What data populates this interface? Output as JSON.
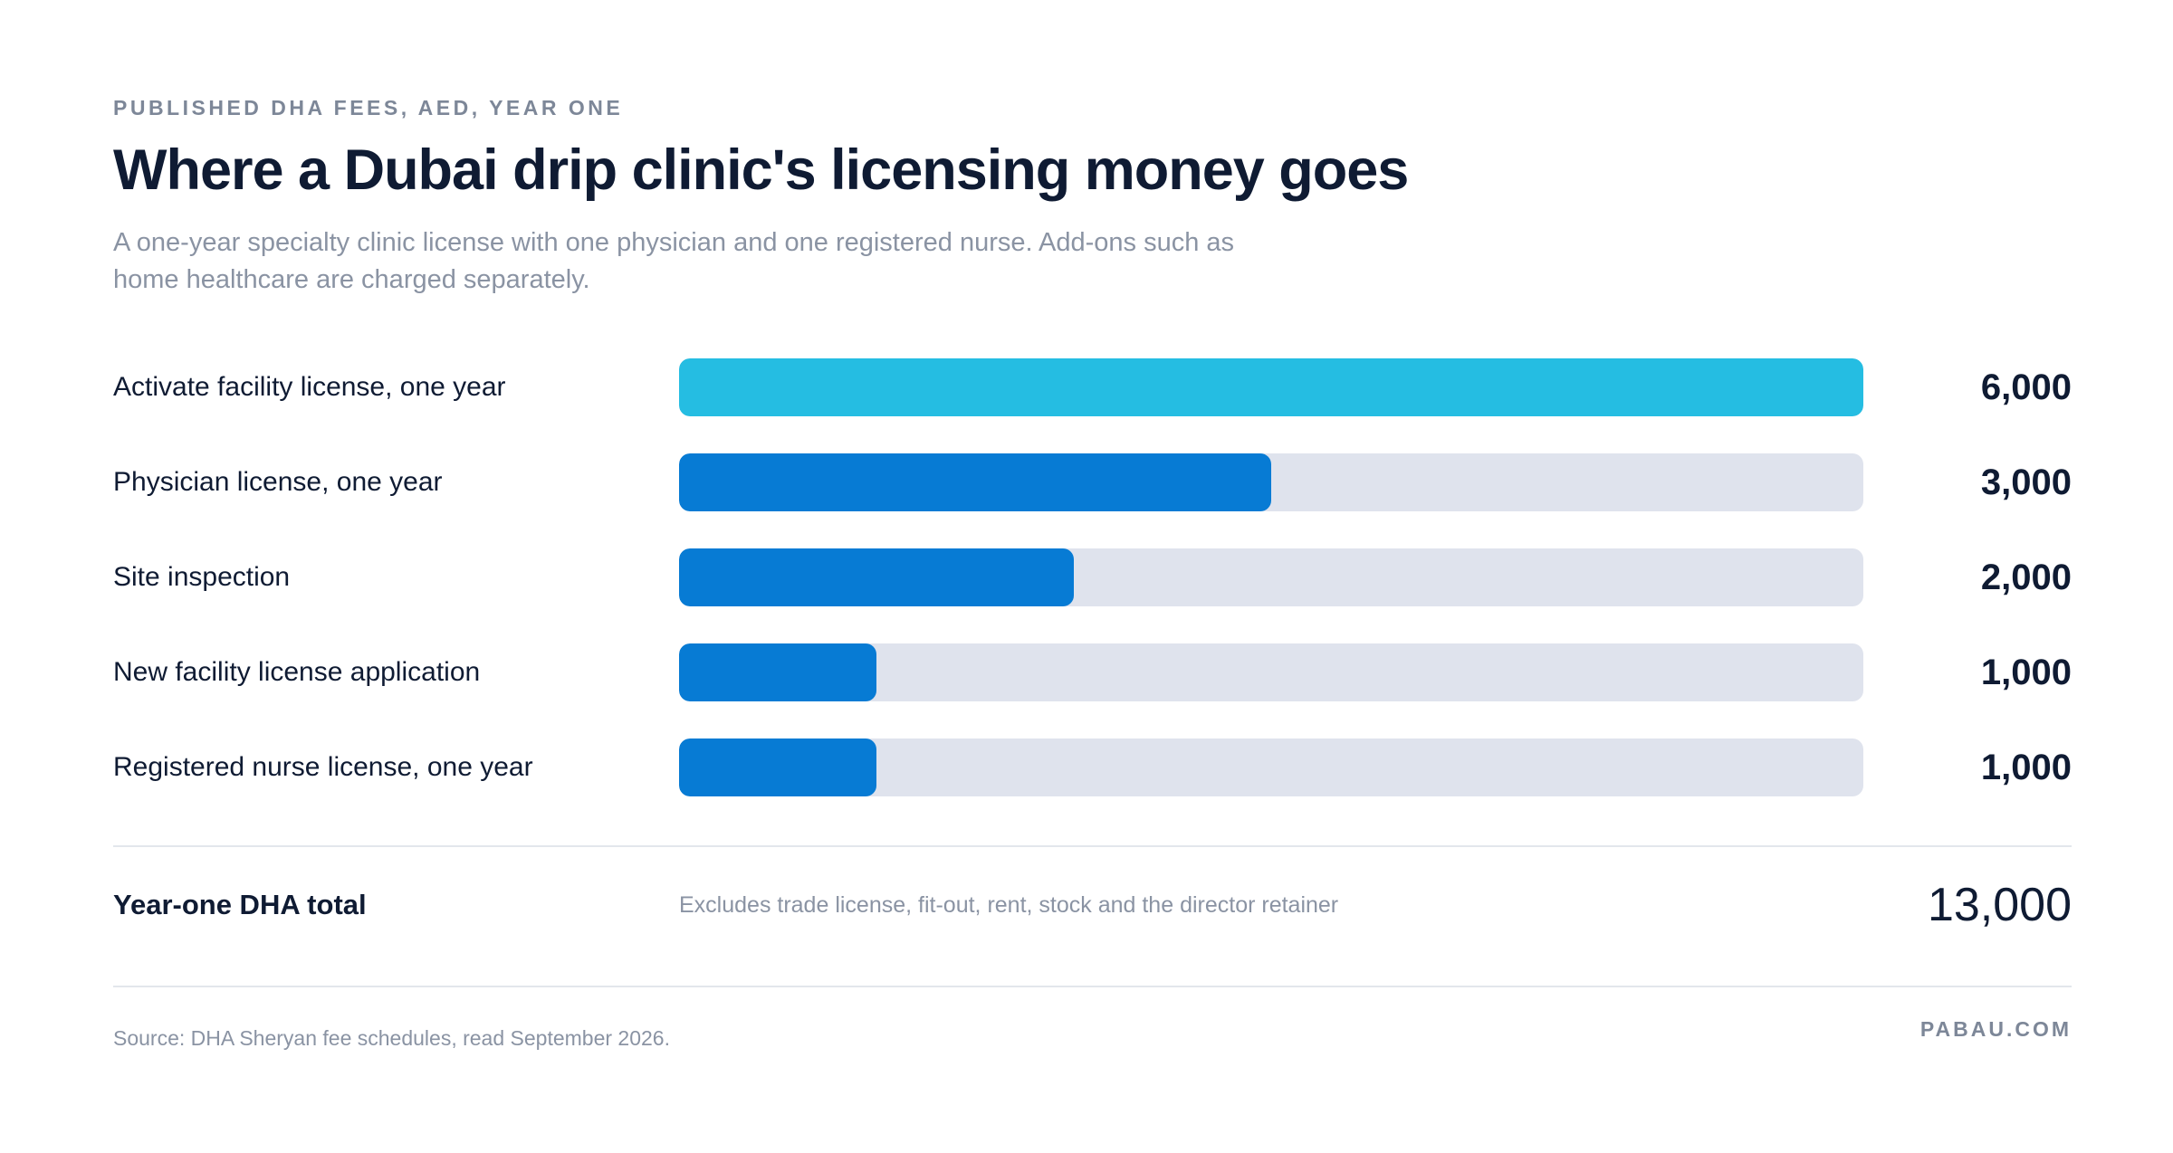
{
  "header": {
    "eyebrow": "PUBLISHED DHA FEES, AED, YEAR ONE",
    "title": "Where a Dubai drip clinic's licensing money goes",
    "subtitle": "A one-year specialty clinic license with one physician and one registered nurse. Add-ons such as home healthcare are charged separately."
  },
  "colors": {
    "highlight_bar": "#25bde2",
    "bar": "#077bd4",
    "track": "#dfe3ed",
    "text_dark": "#0f1b33",
    "text_muted": "#8a93a3"
  },
  "chart_data": {
    "type": "bar",
    "orientation": "horizontal",
    "title": "Where a Dubai drip clinic's licensing money goes",
    "subtitle": "A one-year specialty clinic license with one physician and one registered nurse. Add-ons such as home healthcare are charged separately.",
    "unit": "AED",
    "categories": [
      "Activate facility license, one year",
      "Physician license, one year",
      "Site inspection",
      "New facility license application",
      "Registered nurse license, one year"
    ],
    "values": [
      6000,
      3000,
      2000,
      1000,
      1000
    ],
    "value_labels": [
      "6,000",
      "3,000",
      "2,000",
      "1,000",
      "1,000"
    ],
    "xlim": [
      0,
      6000
    ],
    "grid": false,
    "legend": "none"
  },
  "total": {
    "label": "Year-one DHA total",
    "note": "Excludes trade license, fit-out, rent, stock and the director retainer",
    "value": "13,000"
  },
  "footer": {
    "source": "Source: DHA Sheryan fee schedules, read September 2026.",
    "brand": "PABAU.COM"
  }
}
